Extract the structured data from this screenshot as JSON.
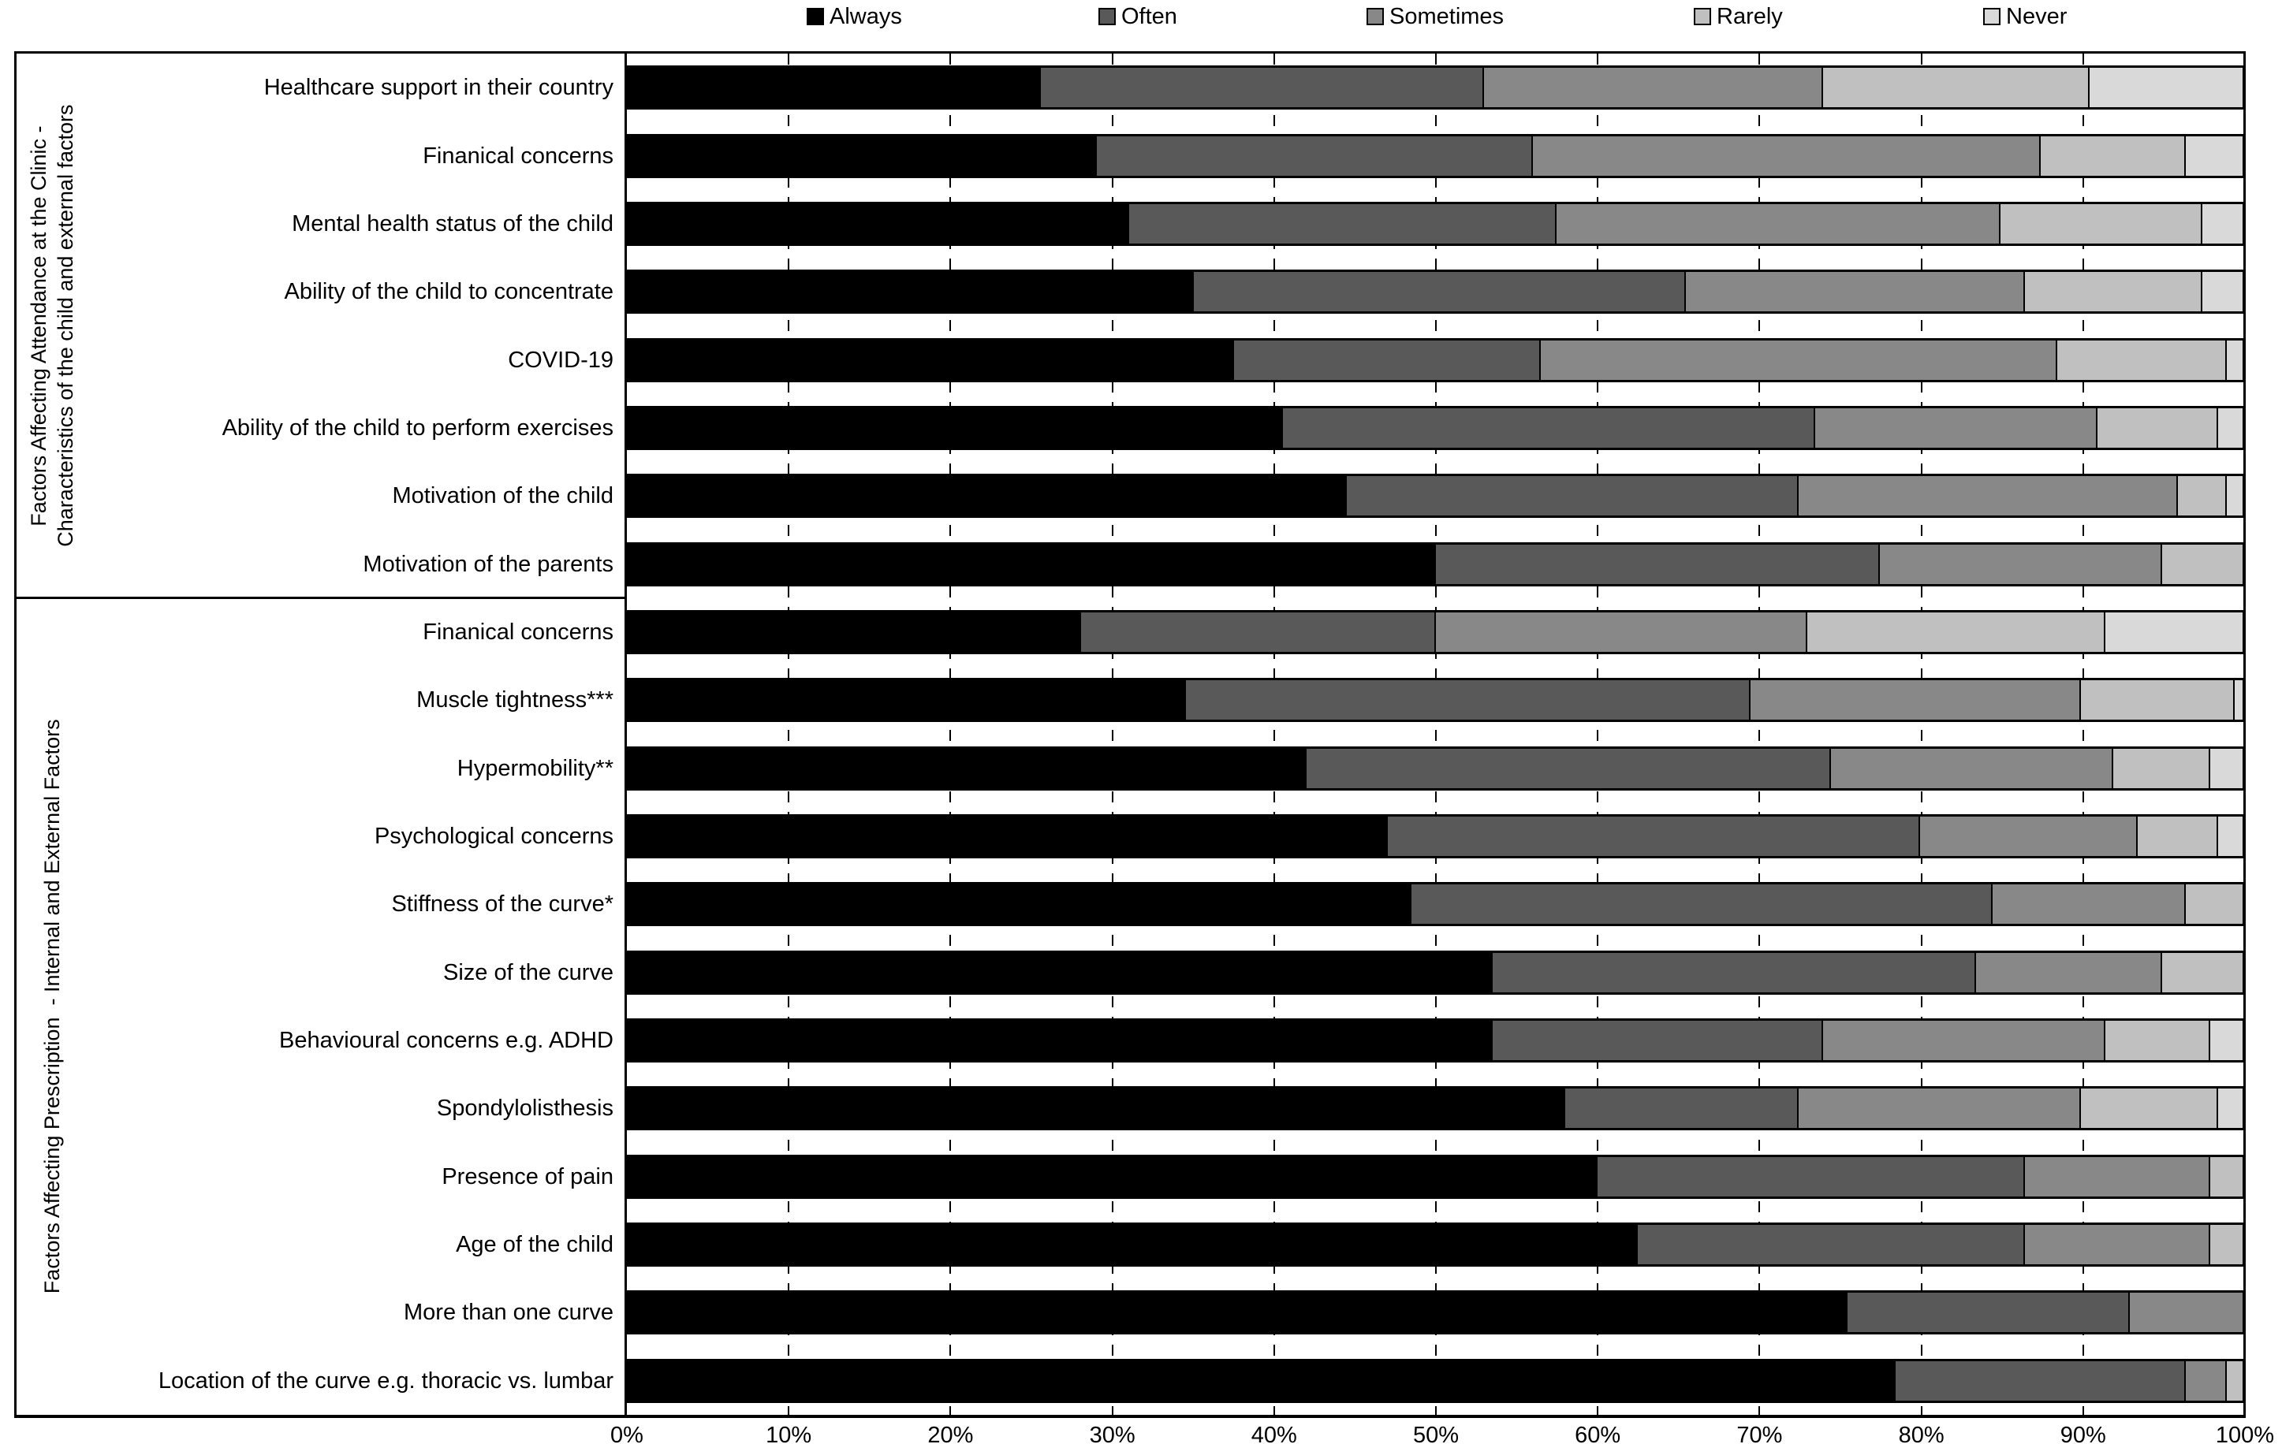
{
  "legend": {
    "items": [
      {
        "label": "Always",
        "color": "#000000"
      },
      {
        "label": "Often",
        "color": "#595959"
      },
      {
        "label": "Sometimes",
        "color": "#888888"
      },
      {
        "label": "Rarely",
        "color": "#c0c0c0"
      },
      {
        "label": "Never",
        "color": "#d9d9d9"
      }
    ]
  },
  "axis": {
    "tick_labels": [
      "0%",
      "10%",
      "20%",
      "30%",
      "40%",
      "50%",
      "60%",
      "70%",
      "80%",
      "90%",
      "100%"
    ]
  },
  "chart_data": {
    "type": "bar",
    "stacked": true,
    "orientation": "horizontal",
    "units": "percent",
    "xlim": [
      0,
      100
    ],
    "grid": "dashed vertical every 10%",
    "legend_position": "top",
    "series_names": [
      "Always",
      "Often",
      "Sometimes",
      "Rarely",
      "Never"
    ],
    "series_colors": [
      "#000000",
      "#595959",
      "#888888",
      "#c0c0c0",
      "#d9d9d9"
    ],
    "groups": [
      {
        "name": "Factors Affecting Attendance at the Clinic - Characteristics of the child and external factors",
        "label_lines": [
          "Factors Affecting Attendance at the Clinic -",
          "Characteristics of the child and external factors"
        ],
        "rows": [
          {
            "category": "Healthcare support in their country",
            "values": [
              25.5,
              27.5,
              21.0,
              16.5,
              9.5
            ]
          },
          {
            "category": "Finanical concerns",
            "values": [
              29.0,
              27.0,
              31.5,
              9.0,
              3.5
            ]
          },
          {
            "category": "Mental health status of the child",
            "values": [
              31.0,
              26.5,
              27.5,
              12.5,
              2.5
            ]
          },
          {
            "category": "Ability of the child to concentrate",
            "values": [
              35.0,
              30.5,
              21.0,
              11.0,
              2.5
            ]
          },
          {
            "category": "COVID-19",
            "values": [
              37.5,
              19.0,
              32.0,
              10.5,
              1.0
            ]
          },
          {
            "category": "Ability of the child to perform exercises",
            "values": [
              40.5,
              33.0,
              17.5,
              7.5,
              1.5
            ]
          },
          {
            "category": "Motivation of the child",
            "values": [
              44.5,
              28.0,
              23.5,
              3.0,
              1.0
            ]
          },
          {
            "category": "Motivation of the parents",
            "values": [
              50.0,
              27.5,
              17.5,
              5.0,
              0.0
            ]
          }
        ]
      },
      {
        "name": "Factors Affecting Prescription - Internal and External Factors",
        "label_lines": [
          "Factors Affecting Prescription  - Internal and External Factors"
        ],
        "rows": [
          {
            "category": "Finanical concerns",
            "values": [
              28.0,
              22.0,
              23.0,
              18.5,
              8.5
            ]
          },
          {
            "category": "Muscle tightness***",
            "values": [
              34.5,
              35.0,
              20.5,
              9.5,
              0.5
            ]
          },
          {
            "category": "Hypermobility**",
            "values": [
              42.0,
              32.5,
              17.5,
              6.0,
              2.0
            ]
          },
          {
            "category": "Psychological concerns",
            "values": [
              47.0,
              33.0,
              13.5,
              5.0,
              1.5
            ]
          },
          {
            "category": "Stiffness of the curve*",
            "values": [
              48.5,
              36.0,
              12.0,
              3.5,
              0.0
            ]
          },
          {
            "category": "Size of the curve",
            "values": [
              53.5,
              30.0,
              11.5,
              5.0,
              0.0
            ]
          },
          {
            "category": "Behavioural concerns e.g. ADHD",
            "values": [
              53.5,
              20.5,
              17.5,
              6.5,
              2.0
            ]
          },
          {
            "category": "Spondylolisthesis",
            "values": [
              58.0,
              14.5,
              17.5,
              8.5,
              1.5
            ]
          },
          {
            "category": "Presence of pain",
            "values": [
              60.0,
              26.5,
              11.5,
              2.0,
              0.0
            ]
          },
          {
            "category": "Age of the child",
            "values": [
              62.5,
              24.0,
              11.5,
              2.0,
              0.0
            ]
          },
          {
            "category": "More than one curve",
            "values": [
              75.5,
              17.5,
              7.0,
              0.0,
              0.0
            ]
          },
          {
            "category": "Location of the curve e.g. thoracic vs. lumbar",
            "values": [
              78.5,
              18.0,
              2.5,
              1.0,
              0.0
            ]
          }
        ]
      }
    ]
  }
}
